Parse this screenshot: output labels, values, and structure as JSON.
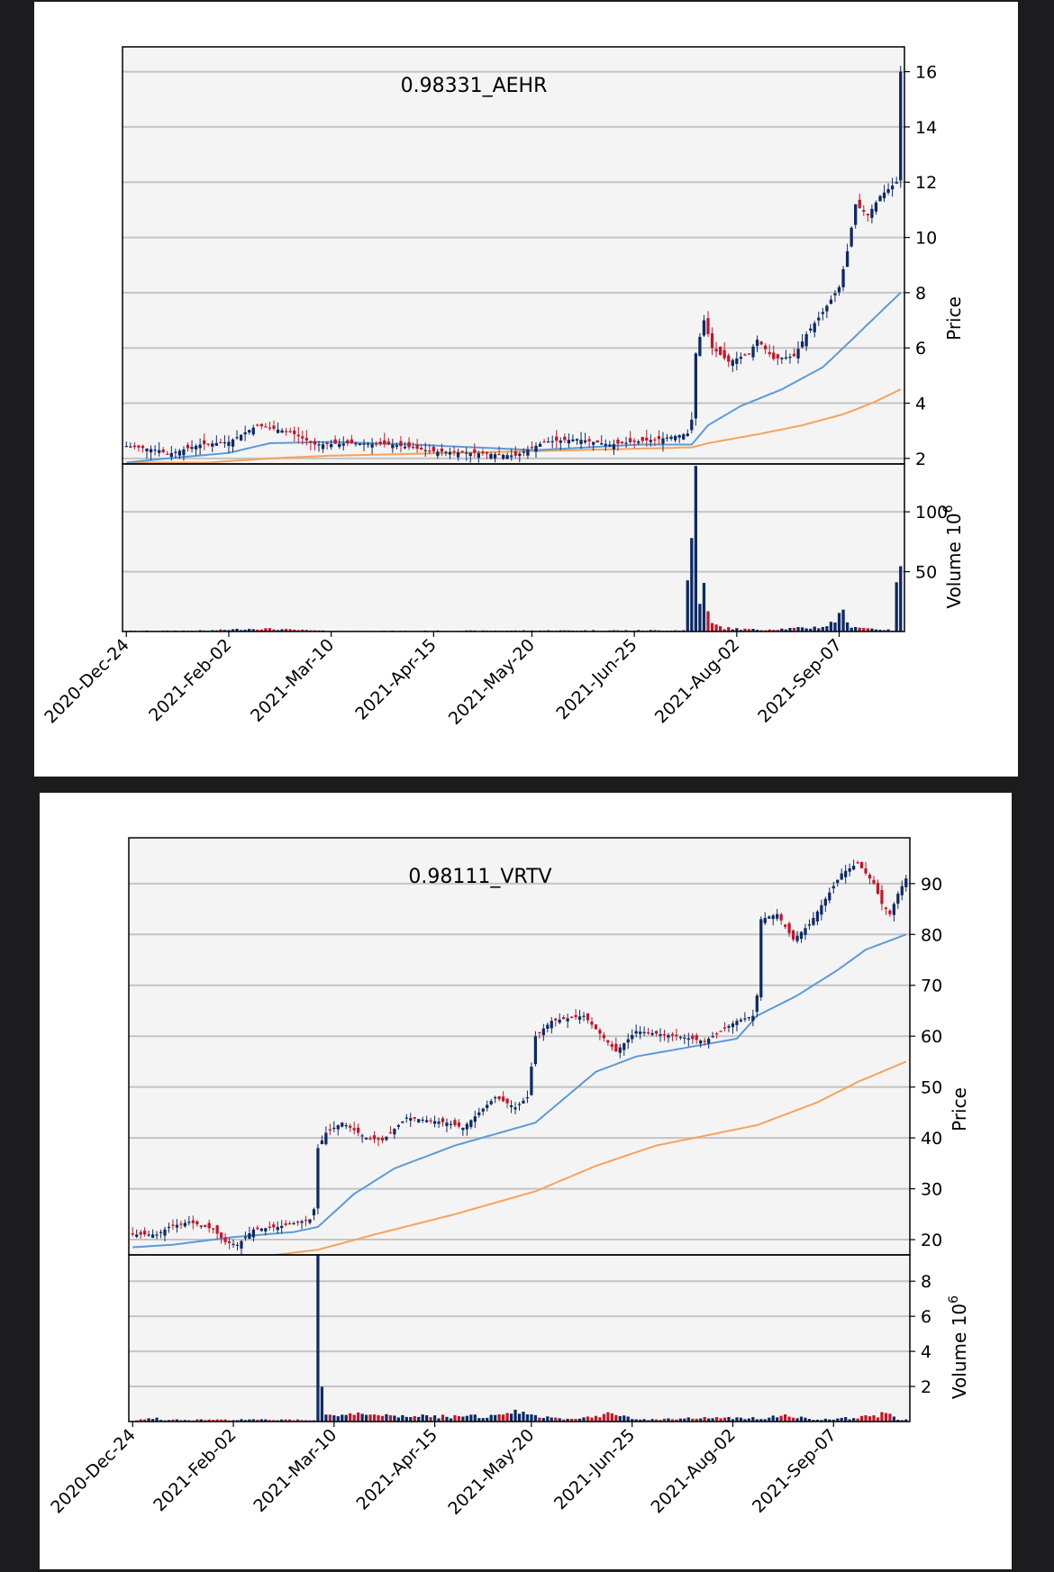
{
  "chart_data": [
    {
      "type": "candlestick",
      "title": "0.98331_AEHR",
      "ylabel": "Price",
      "volume_label": "Volume",
      "volume_unit": "10",
      "volume_exp": "6",
      "price_ylim": [
        1.8,
        16.9
      ],
      "price_ticks": [
        2,
        4,
        6,
        8,
        10,
        12,
        14,
        16
      ],
      "volume_ylim": [
        0,
        140
      ],
      "volume_ticks": [
        50,
        100
      ],
      "n_days": 184,
      "xticks": [
        {
          "i": 0,
          "label": "2020-Dec-24"
        },
        {
          "i": 25,
          "label": "2021-Feb-02"
        },
        {
          "i": 50,
          "label": "2021-Mar-10"
        },
        {
          "i": 75,
          "label": "2021-Apr-15"
        },
        {
          "i": 99,
          "label": "2021-May-20"
        },
        {
          "i": 124,
          "label": "2021-Jun-25"
        },
        {
          "i": 149,
          "label": "2021-Aug-02"
        },
        {
          "i": 174,
          "label": "2021-Sep-07"
        }
      ],
      "close_anchors": [
        [
          0,
          2.45
        ],
        [
          8,
          2.3
        ],
        [
          10,
          2.15
        ],
        [
          18,
          2.5
        ],
        [
          25,
          2.6
        ],
        [
          32,
          3.2
        ],
        [
          40,
          2.95
        ],
        [
          46,
          2.5
        ],
        [
          55,
          2.55
        ],
        [
          65,
          2.5
        ],
        [
          75,
          2.25
        ],
        [
          85,
          2.2
        ],
        [
          95,
          2.1
        ],
        [
          102,
          2.6
        ],
        [
          110,
          2.7
        ],
        [
          118,
          2.5
        ],
        [
          130,
          2.7
        ],
        [
          137,
          2.9
        ],
        [
          138,
          3.4
        ],
        [
          139,
          5.8
        ],
        [
          141,
          7.0
        ],
        [
          143,
          6.0
        ],
        [
          147,
          5.5
        ],
        [
          152,
          5.8
        ],
        [
          154,
          6.3
        ],
        [
          158,
          5.6
        ],
        [
          163,
          5.7
        ],
        [
          166,
          6.5
        ],
        [
          170,
          7.3
        ],
        [
          174,
          8.2
        ],
        [
          176,
          9.5
        ],
        [
          178,
          11.2
        ],
        [
          181,
          10.8
        ],
        [
          184,
          11.5
        ],
        [
          188,
          12.0
        ],
        [
          189,
          16.0
        ]
      ],
      "sma_fast_anchors": [
        [
          0,
          1.85
        ],
        [
          10,
          2.0
        ],
        [
          25,
          2.2
        ],
        [
          35,
          2.55
        ],
        [
          50,
          2.6
        ],
        [
          70,
          2.5
        ],
        [
          100,
          2.3
        ],
        [
          125,
          2.5
        ],
        [
          138,
          2.5
        ],
        [
          142,
          3.2
        ],
        [
          150,
          3.9
        ],
        [
          160,
          4.5
        ],
        [
          170,
          5.3
        ],
        [
          175,
          6.0
        ],
        [
          182,
          7.0
        ],
        [
          189,
          8.0
        ]
      ],
      "sma_slow_anchors": [
        [
          20,
          1.85
        ],
        [
          35,
          2.0
        ],
        [
          50,
          2.1
        ],
        [
          80,
          2.2
        ],
        [
          110,
          2.3
        ],
        [
          138,
          2.4
        ],
        [
          142,
          2.55
        ],
        [
          155,
          2.9
        ],
        [
          165,
          3.2
        ],
        [
          175,
          3.6
        ],
        [
          182,
          4.0
        ],
        [
          189,
          4.5
        ]
      ],
      "volume_anchors": [
        [
          0,
          0.5
        ],
        [
          20,
          0.8
        ],
        [
          32,
          2.5
        ],
        [
          40,
          1.5
        ],
        [
          50,
          0.4
        ],
        [
          100,
          0.8
        ],
        [
          136,
          1.0
        ],
        [
          138,
          78
        ],
        [
          139,
          135
        ],
        [
          140,
          33
        ],
        [
          141,
          33
        ],
        [
          142,
          15
        ],
        [
          143,
          6
        ],
        [
          146,
          3
        ],
        [
          150,
          2
        ],
        [
          155,
          1.5
        ],
        [
          166,
          3
        ],
        [
          170,
          4
        ],
        [
          173,
          8
        ],
        [
          174,
          21
        ],
        [
          176,
          6
        ],
        [
          180,
          3
        ],
        [
          187,
          1
        ],
        [
          189,
          62
        ]
      ]
    },
    {
      "type": "candlestick",
      "title": "0.98111_VRTV",
      "ylabel": "Price",
      "volume_label": "Volume",
      "volume_unit": "10",
      "volume_exp": "6",
      "price_ylim": [
        17,
        99
      ],
      "price_ticks": [
        20,
        30,
        40,
        50,
        60,
        70,
        80,
        90
      ],
      "volume_ylim": [
        0,
        9.5
      ],
      "volume_ticks": [
        2,
        4,
        6,
        8
      ],
      "n_days": 189,
      "xticks": [
        {
          "i": 0,
          "label": "2020-Dec-24"
        },
        {
          "i": 25,
          "label": "2021-Feb-02"
        },
        {
          "i": 50,
          "label": "2021-Mar-10"
        },
        {
          "i": 75,
          "label": "2021-Apr-15"
        },
        {
          "i": 99,
          "label": "2021-May-20"
        },
        {
          "i": 124,
          "label": "2021-Jun-25"
        },
        {
          "i": 149,
          "label": "2021-Aug-02"
        },
        {
          "i": 174,
          "label": "2021-Sep-07"
        }
      ],
      "close_anchors": [
        [
          0,
          21
        ],
        [
          6,
          21
        ],
        [
          9,
          22.5
        ],
        [
          14,
          23.5
        ],
        [
          20,
          22
        ],
        [
          23,
          19.5
        ],
        [
          26,
          19
        ],
        [
          30,
          22
        ],
        [
          36,
          22.5
        ],
        [
          44,
          24
        ],
        [
          45,
          26
        ],
        [
          46,
          38
        ],
        [
          48,
          41
        ],
        [
          52,
          43
        ],
        [
          58,
          40
        ],
        [
          62,
          39.5
        ],
        [
          68,
          44
        ],
        [
          78,
          43
        ],
        [
          82,
          42
        ],
        [
          90,
          48
        ],
        [
          95,
          46
        ],
        [
          98,
          48
        ],
        [
          100,
          60
        ],
        [
          104,
          63
        ],
        [
          112,
          64
        ],
        [
          120,
          57
        ],
        [
          125,
          61
        ],
        [
          135,
          60
        ],
        [
          142,
          59
        ],
        [
          150,
          63
        ],
        [
          154,
          64
        ],
        [
          155,
          68
        ],
        [
          156,
          83
        ],
        [
          160,
          84
        ],
        [
          164,
          79
        ],
        [
          168,
          82
        ],
        [
          172,
          87
        ],
        [
          176,
          92
        ],
        [
          180,
          94
        ],
        [
          184,
          90
        ],
        [
          186,
          86
        ],
        [
          188,
          84
        ],
        [
          190,
          88
        ],
        [
          192,
          91
        ]
      ],
      "sma_fast_anchors": [
        [
          0,
          18.5
        ],
        [
          10,
          19
        ],
        [
          25,
          20.5
        ],
        [
          40,
          21.5
        ],
        [
          46,
          22.5
        ],
        [
          55,
          29
        ],
        [
          65,
          34
        ],
        [
          80,
          38.5
        ],
        [
          100,
          43
        ],
        [
          115,
          53
        ],
        [
          125,
          56
        ],
        [
          150,
          59.5
        ],
        [
          155,
          64
        ],
        [
          165,
          68
        ],
        [
          175,
          73
        ],
        [
          182,
          77
        ],
        [
          192,
          80
        ]
      ],
      "sma_slow_anchors": [
        [
          30,
          16.5
        ],
        [
          46,
          18
        ],
        [
          60,
          21
        ],
        [
          80,
          25
        ],
        [
          100,
          29.5
        ],
        [
          115,
          34.5
        ],
        [
          130,
          38.5
        ],
        [
          155,
          42.5
        ],
        [
          170,
          47
        ],
        [
          180,
          51
        ],
        [
          192,
          55
        ]
      ],
      "volume_anchors": [
        [
          0,
          0.05
        ],
        [
          6,
          0.2
        ],
        [
          8,
          0.1
        ],
        [
          20,
          0.1
        ],
        [
          45,
          0.1
        ],
        [
          46,
          8.8
        ],
        [
          47,
          2.2
        ],
        [
          48,
          0.5
        ],
        [
          52,
          0.35
        ],
        [
          58,
          0.5
        ],
        [
          60,
          0.3
        ],
        [
          90,
          0.3
        ],
        [
          95,
          0.5
        ],
        [
          100,
          0.3
        ],
        [
          110,
          0.15
        ],
        [
          120,
          0.5
        ],
        [
          125,
          0.1
        ],
        [
          140,
          0.2
        ],
        [
          158,
          0.2
        ],
        [
          160,
          0.35
        ],
        [
          170,
          0.1
        ],
        [
          185,
          0.3
        ],
        [
          187,
          0.5
        ],
        [
          190,
          0.1
        ]
      ]
    }
  ]
}
